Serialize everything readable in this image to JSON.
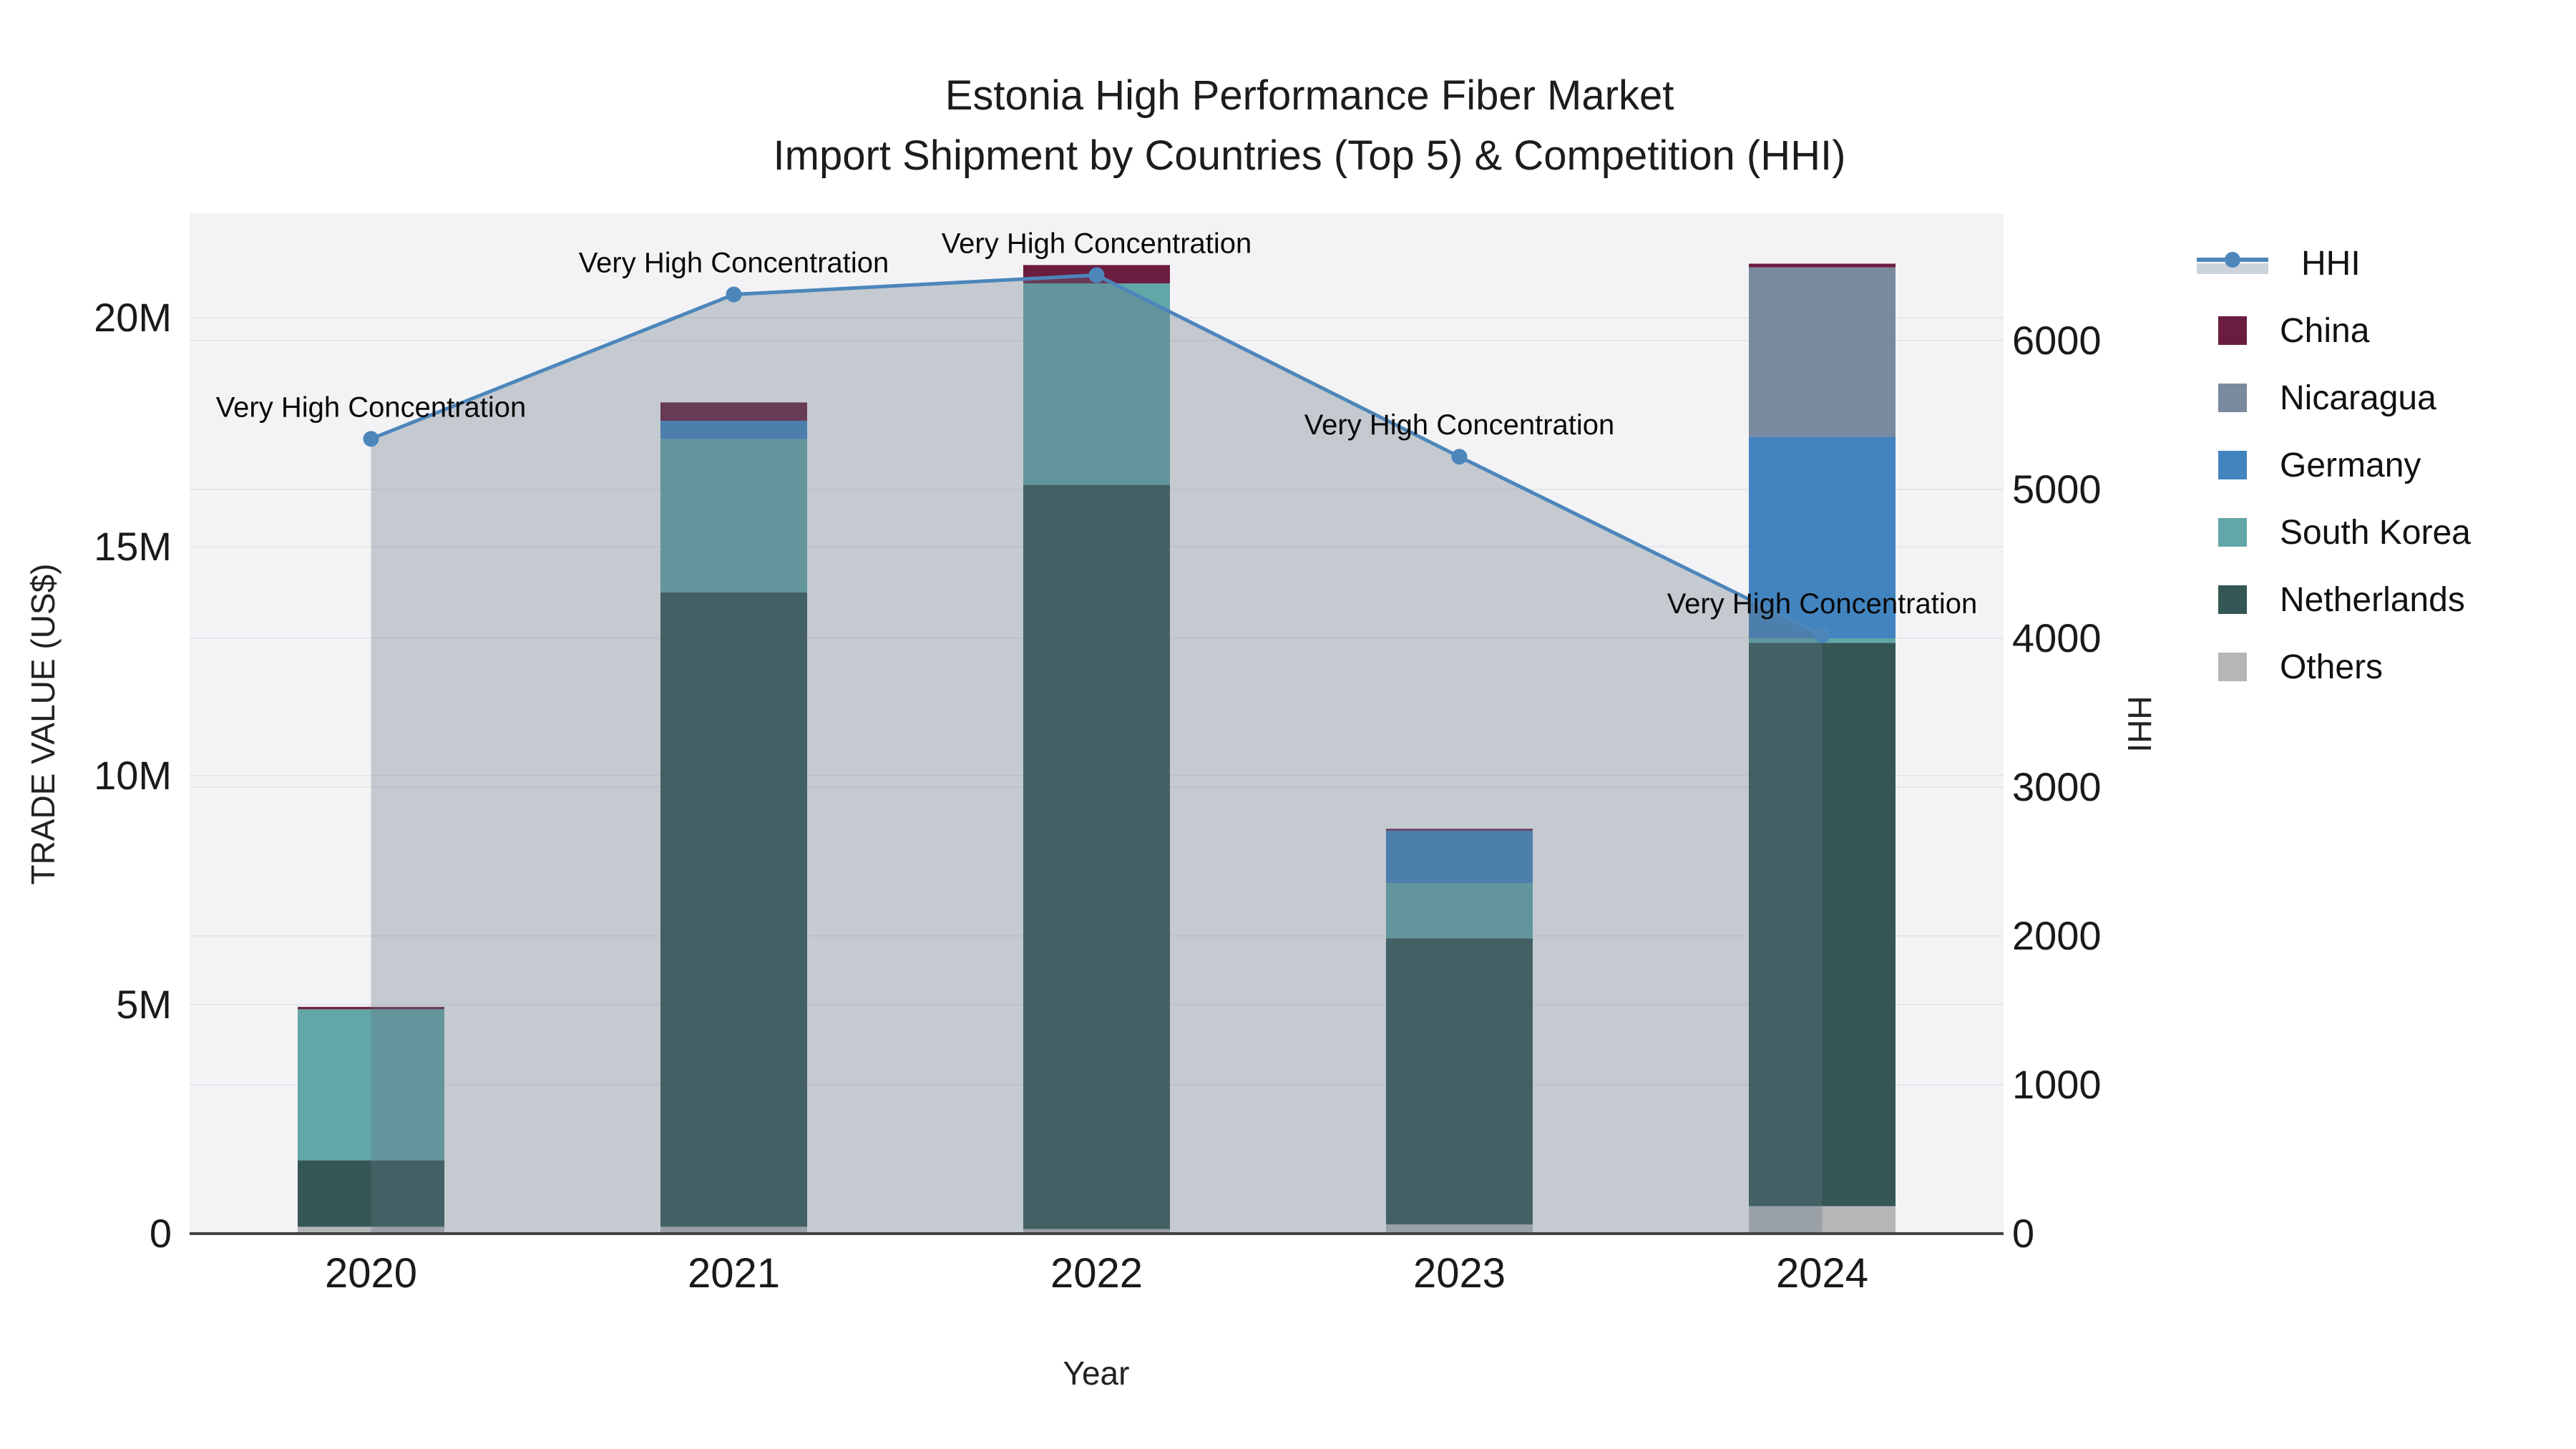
{
  "title": {
    "line1": "Estonia High Performance Fiber Market",
    "line2": "Import Shipment by Countries (Top 5) & Competition (HHI)"
  },
  "axes": {
    "left": {
      "title": "TRADE VALUE (US$)",
      "tick_labels": [
        "0",
        "5M",
        "10M",
        "15M",
        "20M"
      ],
      "tick_values": [
        0,
        5,
        10,
        15,
        20
      ]
    },
    "right": {
      "title": "HHI",
      "tick_labels": [
        "0",
        "1000",
        "2000",
        "3000",
        "4000",
        "5000",
        "6000"
      ],
      "tick_values": [
        0,
        1000,
        2000,
        3000,
        4000,
        5000,
        6000
      ]
    },
    "x": {
      "title": "Year",
      "tick_labels": [
        "2020",
        "2021",
        "2022",
        "2023",
        "2024"
      ]
    }
  },
  "legend": {
    "position": "right",
    "items": [
      {
        "label": "HHI",
        "type": "line",
        "color": "#4c86bb"
      },
      {
        "label": "China",
        "type": "swatch",
        "color": "#6b1d3f"
      },
      {
        "label": "Nicaragua",
        "type": "swatch",
        "color": "#7a8a9e"
      },
      {
        "label": "Germany",
        "type": "swatch",
        "color": "#4284c0"
      },
      {
        "label": "South Korea",
        "type": "swatch",
        "color": "#62a6a8"
      },
      {
        "label": "Netherlands",
        "type": "swatch",
        "color": "#345654"
      },
      {
        "label": "Others",
        "type": "swatch",
        "color": "#b4b6b8"
      }
    ]
  },
  "chart_data": {
    "type": "bar+line",
    "title": "Estonia High Performance Fiber Market — Import Shipment by Countries (Top 5) & Competition (HHI)",
    "categories": [
      "2020",
      "2021",
      "2022",
      "2023",
      "2024"
    ],
    "xlabel": "Year",
    "ylabel": "TRADE VALUE (US$)",
    "y2label": "HHI",
    "ylim": [
      0,
      22.28
    ],
    "y2lim": [
      0,
      6857
    ],
    "value_unit": "millions USD",
    "grid": "on",
    "stack_order_bottom_to_top": [
      "Others",
      "Netherlands",
      "South Korea",
      "Germany",
      "Nicaragua",
      "China"
    ],
    "series": [
      {
        "name": "Others",
        "color": "#b4b6b8",
        "values": [
          0.15,
          0.15,
          0.1,
          0.2,
          0.6
        ]
      },
      {
        "name": "Netherlands",
        "color": "#345654",
        "values": [
          1.45,
          13.85,
          16.25,
          6.25,
          12.3
        ]
      },
      {
        "name": "South Korea",
        "color": "#62a6a8",
        "values": [
          3.3,
          3.35,
          4.4,
          1.2,
          0.1
        ]
      },
      {
        "name": "Germany",
        "color": "#4284c0",
        "values": [
          0.0,
          0.4,
          0.0,
          1.15,
          4.4
        ]
      },
      {
        "name": "Nicaragua",
        "color": "#7a8a9e",
        "values": [
          0.0,
          0.0,
          0.0,
          0.0,
          3.7
        ]
      },
      {
        "name": "China",
        "color": "#6b1d3f",
        "values": [
          0.05,
          0.4,
          0.4,
          0.04,
          0.08
        ]
      }
    ],
    "bar_totals": [
      4.95,
      18.15,
      21.15,
      8.84,
      21.18
    ],
    "hhi_line": {
      "name": "HHI",
      "color": "#4c86bb",
      "fill_color": "rgba(100,118,135,0.33)",
      "values": [
        5340,
        6310,
        6440,
        5220,
        4020
      ]
    },
    "annotations": [
      {
        "x": "2020",
        "text": "Very High Concentration"
      },
      {
        "x": "2021",
        "text": "Very High Concentration"
      },
      {
        "x": "2022",
        "text": "Very High Concentration"
      },
      {
        "x": "2023",
        "text": "Very High Concentration"
      },
      {
        "x": "2024",
        "text": "Very High Concentration"
      }
    ],
    "colors": {
      "plot_background": "#f3f3f5",
      "gridline": "#e4e6e9",
      "axis_line": "#444444"
    }
  }
}
